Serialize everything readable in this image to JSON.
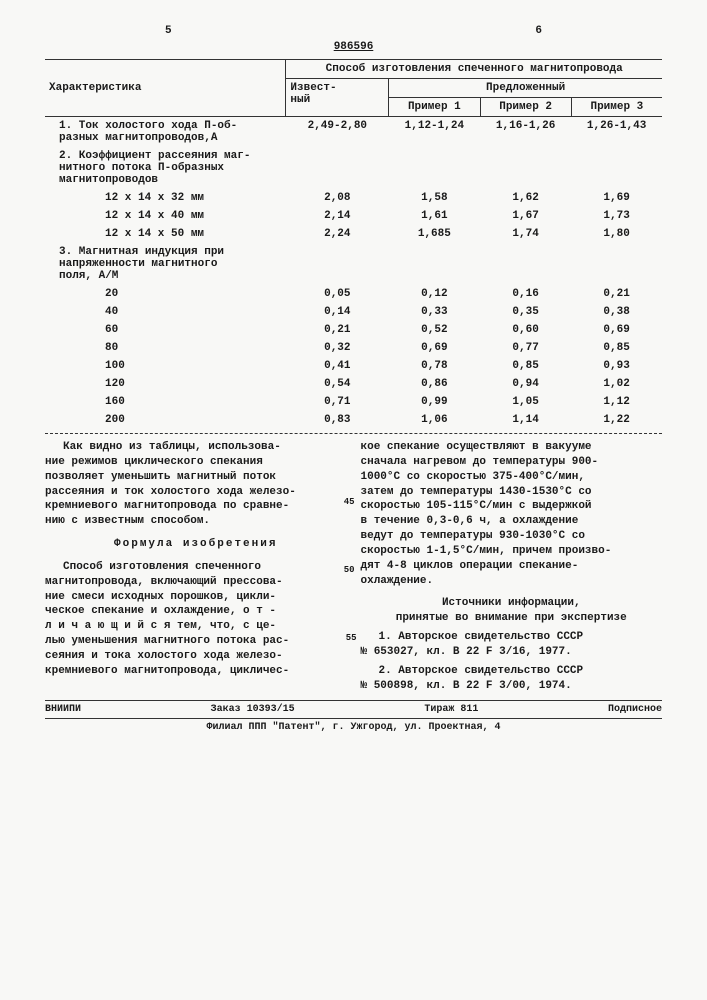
{
  "header": {
    "page_left": "5",
    "patent": "986596",
    "page_right": "6"
  },
  "table": {
    "col_header_main": "Характеристика",
    "col_header_method": "Способ изготовления спеченного магнитопровода",
    "col_known": "Извест-\nный",
    "col_proposed": "Предложенный",
    "col_ex1": "Пример 1",
    "col_ex2": "Пример 2",
    "col_ex3": "Пример 3",
    "rows": [
      {
        "label": "1. Ток холостого хода П-об-\nразных магнитопроводов,А",
        "v": [
          "2,49-2,80",
          "1,12-1,24",
          "1,16-1,26",
          "1,26-1,43"
        ]
      },
      {
        "label": "2. Коэффициент рассеяния маг-\nнитного потока П-образных\nмагнитопроводов",
        "v": [
          "",
          "",
          "",
          ""
        ]
      },
      {
        "sub": "12 х 14 х 32 мм",
        "v": [
          "2,08",
          "1,58",
          "1,62",
          "1,69"
        ]
      },
      {
        "sub": "12 х 14 х 40 мм",
        "v": [
          "2,14",
          "1,61",
          "1,67",
          "1,73"
        ]
      },
      {
        "sub": "12 х 14 х 50 мм",
        "v": [
          "2,24",
          "1,685",
          "1,74",
          "1,80"
        ]
      },
      {
        "label": "3. Магнитная индукция при\nнапряженности магнитного\nполя, А/М",
        "v": [
          "",
          "",
          "",
          ""
        ]
      },
      {
        "sub": "20",
        "v": [
          "0,05",
          "0,12",
          "0,16",
          "0,21"
        ]
      },
      {
        "sub": "40",
        "v": [
          "0,14",
          "0,33",
          "0,35",
          "0,38"
        ]
      },
      {
        "sub": "60",
        "v": [
          "0,21",
          "0,52",
          "0,60",
          "0,69"
        ]
      },
      {
        "sub": "80",
        "v": [
          "0,32",
          "0,69",
          "0,77",
          "0,85"
        ]
      },
      {
        "sub": "100",
        "v": [
          "0,41",
          "0,78",
          "0,85",
          "0,93"
        ]
      },
      {
        "sub": "120",
        "v": [
          "0,54",
          "0,86",
          "0,94",
          "1,02"
        ]
      },
      {
        "sub": "160",
        "v": [
          "0,71",
          "0,99",
          "1,05",
          "1,12"
        ]
      },
      {
        "sub": "200",
        "v": [
          "0,83",
          "1,06",
          "1,14",
          "1,22"
        ]
      }
    ]
  },
  "text": {
    "left_p1": "Как видно из таблицы, использова-\nние режимов циклического спекания\nпозволяет уменьшить магнитный поток\nрассеяния и ток холостого хода железо-\nкремниевого магнитопровода по сравне-\nнию с известным способом.",
    "formula_title": "Формула изобретения",
    "left_p2": "Способ изготовления спеченного\nмагнитопровода, включающий прессова-\nние смеси исходных порошков, цикли-\nческое спекание и охлаждение, о т -\nл и ч а ю щ и й с я  тем, что, с це-\nлью уменьшения магнитного потока рас-\nсеяния и тока холостого хода железо-\nкремниевого магнитопровода, цикличес-",
    "right_p1": "кое спекание осуществляют в вакууме\nсначала нагревом до температуры 900-\n1000°С со скоростью 375-400°С/мин,\nзатем до температуры 1430-1530°С со\nскоростью 105-115°С/мин с выдержкой\nв течение 0,3-0,6 ч, а охлаждение\nведут до температуры 930-1030°С со\nскоростью 1-1,5°С/мин, причем произво-\nдят 4-8 циклов операции спекание-\nохлаждение.",
    "sources_title": "Источники информации,\nпринятые во внимание при экспертизе",
    "src1": "1. Авторское свидетельство СССР\n№ 653027, кл. В 22 F 3/16, 1977.",
    "src2": "2. Авторское свидетельство СССР\n№ 500898, кл. В 22 F 3/00, 1974."
  },
  "footer": {
    "org": "ВНИИПИ",
    "order": "Заказ 10393/15",
    "tirage": "Тираж 811",
    "sub": "Подписное",
    "addr": "Филиал ППП \"Патент\", г. Ужгород, ул. Проектная, 4"
  }
}
